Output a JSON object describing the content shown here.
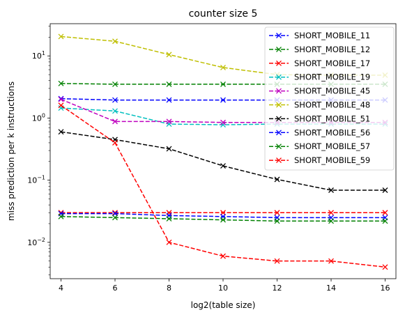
{
  "chart_data": {
    "type": "line",
    "title": "counter size 5",
    "xlabel": "log2(table size)",
    "ylabel": "miss prediction per k instructions",
    "yscale": "log",
    "xlim": [
      3.6,
      16.4
    ],
    "ylim": [
      0.0026,
      33
    ],
    "x": [
      4,
      6,
      8,
      10,
      12,
      14,
      16
    ],
    "xticks": [
      4,
      6,
      8,
      10,
      12,
      14,
      16
    ],
    "yticks": [
      {
        "value": 0.01,
        "base": "10",
        "exp": "−2"
      },
      {
        "value": 0.1,
        "base": "10",
        "exp": "−1"
      },
      {
        "value": 1,
        "base": "10",
        "exp": "0"
      },
      {
        "value": 10,
        "base": "10",
        "exp": "1"
      }
    ],
    "grid": false,
    "legend_position": "top-right",
    "series": [
      {
        "name": "SHORT_MOBILE_11",
        "color": "#0000ff",
        "values": [
          2.05,
          1.95,
          1.95,
          1.95,
          1.95,
          1.95,
          1.95
        ]
      },
      {
        "name": "SHORT_MOBILE_12",
        "color": "#008000",
        "values": [
          3.6,
          3.5,
          3.5,
          3.5,
          3.5,
          3.5,
          3.5
        ]
      },
      {
        "name": "SHORT_MOBILE_17",
        "color": "#ff0000",
        "values": [
          0.03,
          0.03,
          0.03,
          0.03,
          0.03,
          0.03,
          0.03
        ]
      },
      {
        "name": "SHORT_MOBILE_19",
        "color": "#00bfbf",
        "values": [
          1.45,
          1.3,
          0.8,
          0.78,
          0.8,
          0.8,
          0.8
        ]
      },
      {
        "name": "SHORT_MOBILE_45",
        "color": "#bf00bf",
        "values": [
          2.0,
          0.88,
          0.88,
          0.85,
          0.85,
          0.85,
          0.85
        ]
      },
      {
        "name": "SHORT_MOBILE_48",
        "color": "#bfbf00",
        "values": [
          20.5,
          17.2,
          10.5,
          6.5,
          5.0,
          4.9,
          4.9
        ]
      },
      {
        "name": "SHORT_MOBILE_51",
        "color": "#000000",
        "values": [
          0.6,
          0.45,
          0.32,
          0.17,
          0.103,
          0.069,
          0.069
        ]
      },
      {
        "name": "SHORT_MOBILE_56",
        "color": "#0000ff",
        "values": [
          0.029,
          0.029,
          0.027,
          0.026,
          0.025,
          0.025,
          0.025
        ]
      },
      {
        "name": "SHORT_MOBILE_57",
        "color": "#008000",
        "values": [
          0.026,
          0.025,
          0.024,
          0.023,
          0.022,
          0.022,
          0.022
        ]
      },
      {
        "name": "SHORT_MOBILE_59",
        "color": "#ff0000",
        "values": [
          1.6,
          0.4,
          0.01,
          0.006,
          0.005,
          0.005,
          0.004
        ]
      }
    ]
  }
}
